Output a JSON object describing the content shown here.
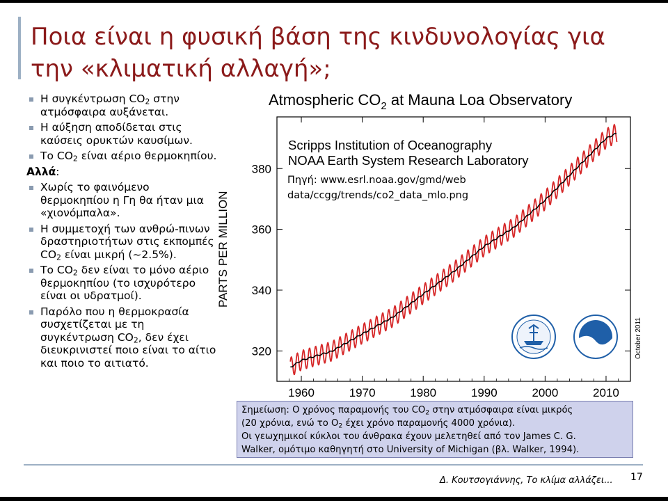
{
  "slide": {
    "title_line1": "Ποια είναι η φυσική βάση της κινδυνολογίας για",
    "title_line2": "την «κλιματική αλλαγή»;",
    "footer_author": "Δ. Κουτσογιάννης, Το κλίμα αλλάζει...",
    "page_number": "17"
  },
  "bullets": {
    "b1_pre": "Η συγκέντρωση CO",
    "b1_sub": "2",
    "b1_post": " στην ατμόσφαιρα αυξάνεται.",
    "b2": "Η αύξηση αποδίδεται στις καύσεις ορυκτών καυσίμων.",
    "b3_pre": "Το CO",
    "b3_sub": "2",
    "b3_post": " είναι αέριο θερμοκηπίου.",
    "heading": "Αλλά",
    "heading_colon": ":",
    "b4": "Χωρίς το φαινόμενο θερμοκηπίου η Γη θα ήταν μια «χιονόμπαλα».",
    "b5_pre": "Η συμμετοχή των ανθρώ-πινων δραστηριοτήτων στις εκπομπές CO",
    "b5_sub": "2",
    "b5_post": " είναι μικρή (~2.5%).",
    "b6_pre": "Το CO",
    "b6_sub": "2",
    "b6_post": " δεν είναι το μόνο αέριο θερμοκηπίου (το ισχυρότερο είναι οι υδρατμοί).",
    "b7_pre": "Παρόλο που η θερμοκρασία συσχετίζεται με τη συγκέντρωση CO",
    "b7_sub": "2",
    "b7_post": ", δεν έχει διευκρινιστεί ποιο είναι το αίτιο και ποιο το αιτιατό."
  },
  "source": {
    "line1": "Πηγή: www.esrl.noaa.gov/gmd/web",
    "line2": "data/ccgg/trends/co2_data_mlo.png"
  },
  "note": {
    "l1_pre": "Σημείωση: Ο χρόνος παραμονής του  CO",
    "l1_sub": "2",
    "l1_post": " στην ατμόσφαιρα είναι μικρός",
    "l2_pre": "(20 χρόνια, ενώ το O",
    "l2_sub": "2",
    "l2_post": " έχει χρόνο παραμονής 4000 χρόνια).",
    "l3": "Οι γεωχημικοί κύκλοι του άνθρακα έχουν μελετηθεί από τον James C. G.",
    "l4": "Walker, ομότιμο καθηγητή στο University of Michigan (βλ. Walker, 1994)."
  },
  "colors": {
    "title": "#8b1a1a",
    "monthly_line": "#d62728",
    "trend_line": "#000000",
    "note_bg": "#cfd2ec",
    "bullet": "#8a9bb0"
  },
  "chart_data": {
    "type": "line",
    "title_pre": "Atmospheric CO",
    "title_sub": "2",
    "title_post": " at Mauna Loa Observatory",
    "subtitle1": "Scripps Institution of Oceanography",
    "subtitle2": "NOAA Earth System Research Laboratory",
    "ylabel": "PARTS PER MILLION",
    "side_label": "October 2011",
    "xlim": [
      1956,
      2014
    ],
    "ylim": [
      310,
      397
    ],
    "x_ticks": [
      1960,
      1970,
      1980,
      1990,
      2000,
      2010
    ],
    "y_ticks": [
      320,
      340,
      360,
      380
    ],
    "series": [
      {
        "role": "monthly mean",
        "color": "#d62728",
        "seasonal_amplitude_ppm": 3.2,
        "x": [
          1958.2,
          2011.8
        ],
        "note": "monthly values oscillate around the trend with annual cycle"
      },
      {
        "role": "seasonally corrected trend",
        "color": "#000000",
        "x": [
          1958.2,
          1960,
          1965,
          1970,
          1975,
          1980,
          1985,
          1990,
          1995,
          2000,
          2005,
          2010,
          2011.8
        ],
        "y": [
          314.6,
          316.9,
          319.9,
          325.6,
          331.1,
          338.7,
          346.1,
          354.4,
          360.8,
          369.6,
          379.8,
          389.9,
          391.7
        ]
      }
    ]
  }
}
